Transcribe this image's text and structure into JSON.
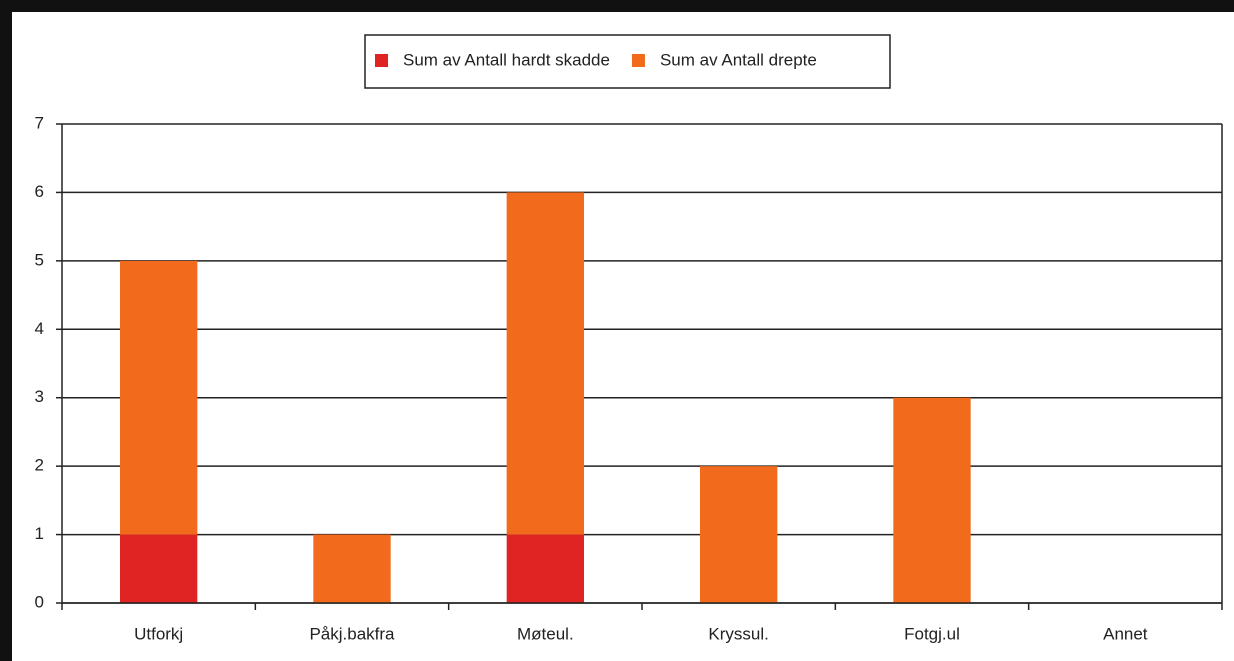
{
  "chart_data": {
    "type": "stacked_bar",
    "categories": [
      "Utforkj",
      "Påkj.bakfra",
      "Møteul.",
      "Kryssul.",
      "Fotgj.ul",
      "Annet"
    ],
    "series": [
      {
        "name": "Sum av Antall hardt skadde",
        "color": "#e02424",
        "values": [
          1,
          0,
          1,
          0,
          0,
          0
        ]
      },
      {
        "name": "Sum av Antall drepte",
        "color": "#f26b1d",
        "values": [
          4,
          1,
          5,
          2,
          3,
          0
        ]
      }
    ],
    "ylim": [
      0,
      7
    ],
    "yticks": [
      0,
      1,
      2,
      3,
      4,
      5,
      6,
      7
    ],
    "grid": true,
    "legend": "top"
  }
}
